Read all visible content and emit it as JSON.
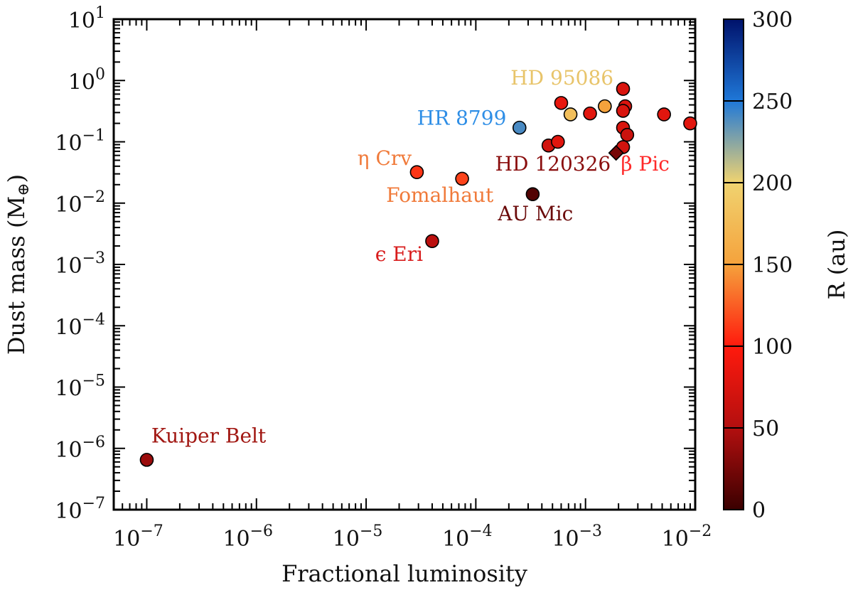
{
  "chart_data": {
    "type": "scatter",
    "xlabel": "Fractional luminosity",
    "ylabel": "Dust mass (M",
    "ylabel_symbol": "⊕",
    "xscale": "log",
    "yscale": "log",
    "xlim": [
      5e-08,
      0.01
    ],
    "ylim": [
      1e-07,
      10
    ],
    "x_ticks": [
      {
        "base": "10",
        "exp": "−7"
      },
      {
        "base": "10",
        "exp": "−6"
      },
      {
        "base": "10",
        "exp": "−5"
      },
      {
        "base": "10",
        "exp": "−4"
      },
      {
        "base": "10",
        "exp": "−3"
      },
      {
        "base": "10",
        "exp": "−2"
      }
    ],
    "y_ticks": [
      {
        "base": "10",
        "exp": "1"
      },
      {
        "base": "10",
        "exp": "0"
      },
      {
        "base": "10",
        "exp": "−1"
      },
      {
        "base": "10",
        "exp": "−2"
      },
      {
        "base": "10",
        "exp": "−3"
      },
      {
        "base": "10",
        "exp": "−4"
      },
      {
        "base": "10",
        "exp": "−5"
      },
      {
        "base": "10",
        "exp": "−6"
      },
      {
        "base": "10",
        "exp": "−7"
      }
    ],
    "colorbar": {
      "label": "R (au)",
      "min": 0,
      "max": 300,
      "ticks": [
        "0",
        "50",
        "100",
        "150",
        "200",
        "250",
        "300"
      ],
      "colors": [
        "#3a0000",
        "#b30f0f",
        "#ff1a0d",
        "#f5a23c",
        "#f0d370",
        "#1f78d8",
        "#00126b"
      ]
    },
    "points": [
      {
        "x": 1e-07,
        "y": 6.5e-07,
        "r": 40,
        "marker": "circle"
      },
      {
        "x": 4e-05,
        "y": 0.0024,
        "r": 55,
        "marker": "circle"
      },
      {
        "x": 2.9e-05,
        "y": 0.032,
        "r": 110,
        "marker": "circle"
      },
      {
        "x": 7.5e-05,
        "y": 0.025,
        "r": 115,
        "marker": "circle"
      },
      {
        "x": 0.00033,
        "y": 0.014,
        "r": 10,
        "marker": "circle"
      },
      {
        "x": 0.00025,
        "y": 0.17,
        "r": 240,
        "marker": "circle"
      },
      {
        "x": 0.00046,
        "y": 0.087,
        "r": 70,
        "marker": "circle"
      },
      {
        "x": 0.00056,
        "y": 0.1,
        "r": 80,
        "marker": "circle"
      },
      {
        "x": 0.0006,
        "y": 0.43,
        "r": 85,
        "marker": "circle"
      },
      {
        "x": 0.00073,
        "y": 0.28,
        "r": 180,
        "marker": "circle"
      },
      {
        "x": 0.0011,
        "y": 0.29,
        "r": 80,
        "marker": "circle"
      },
      {
        "x": 0.0015,
        "y": 0.38,
        "r": 150,
        "marker": "circle"
      },
      {
        "x": 0.0022,
        "y": 0.73,
        "r": 75,
        "marker": "circle"
      },
      {
        "x": 0.0023,
        "y": 0.38,
        "r": 75,
        "marker": "circle"
      },
      {
        "x": 0.0022,
        "y": 0.32,
        "r": 75,
        "marker": "circle"
      },
      {
        "x": 0.0022,
        "y": 0.17,
        "r": 75,
        "marker": "circle"
      },
      {
        "x": 0.0024,
        "y": 0.13,
        "r": 65,
        "marker": "circle"
      },
      {
        "x": 0.0022,
        "y": 0.082,
        "r": 70,
        "marker": "circle"
      },
      {
        "x": 0.0019,
        "y": 0.066,
        "r": 25,
        "marker": "diamond"
      },
      {
        "x": 0.0052,
        "y": 0.28,
        "r": 80,
        "marker": "circle"
      },
      {
        "x": 0.009,
        "y": 0.2,
        "r": 80,
        "marker": "circle"
      }
    ],
    "annotations": [
      {
        "text": "Kuiper Belt",
        "x": 1.1e-07,
        "y": 1.25e-06,
        "color": "#a11712",
        "anchor": "start"
      },
      {
        "text": "ϵ Eri",
        "x": 3.3e-05,
        "y": 0.00114,
        "color": "#d81c1c",
        "anchor": "end"
      },
      {
        "text": "η Crv",
        "x": 2.6e-05,
        "y": 0.042,
        "color": "#f07a3a",
        "anchor": "end"
      },
      {
        "text": "Fomalhaut",
        "x": 4.7e-05,
        "y": 0.0105,
        "color": "#f07a3a",
        "anchor": "middle"
      },
      {
        "text": "AU Mic",
        "x": 0.00035,
        "y": 0.0052,
        "color": "#6b0b0b",
        "anchor": "middle"
      },
      {
        "text": "HR 8799",
        "x": 0.00019,
        "y": 0.19,
        "color": "#2e8ee6",
        "anchor": "end"
      },
      {
        "text": "HD 95086",
        "x": 0.0018,
        "y": 0.86,
        "color": "#e8c46a",
        "anchor": "end"
      },
      {
        "text": "HD 120326",
        "x": 0.0017,
        "y": 0.034,
        "color": "#8a0e0e",
        "anchor": "end"
      },
      {
        "text": "β Pic",
        "x": 0.0021,
        "y": 0.034,
        "color": "#ff2a2a",
        "anchor": "start"
      }
    ]
  }
}
